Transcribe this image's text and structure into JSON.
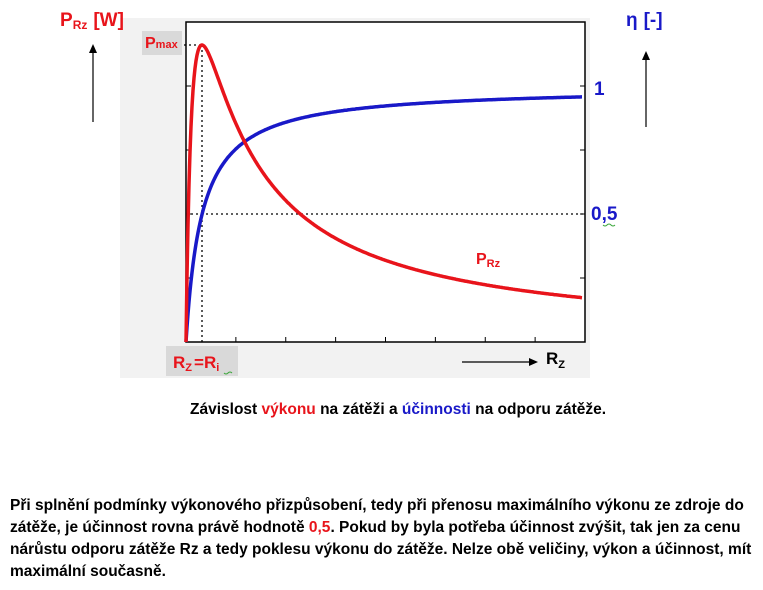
{
  "chart_data": {
    "type": "line",
    "y_left_label": {
      "main": "P",
      "sub": "Rz",
      "unit": "[W]"
    },
    "y_right_label": {
      "main": "η",
      "unit": "[-]"
    },
    "x_label": {
      "main": "R",
      "sub": "Z"
    },
    "pmax_label": {
      "main": "P",
      "sub": "max"
    },
    "x_marker_label": {
      "a": "R",
      "a_sub": "Z",
      "eq": "=",
      "b": "R",
      "b_sub": "i"
    },
    "right_ticks": [
      "1",
      "0,5"
    ],
    "curve_label": {
      "main": "P",
      "sub": "Rz"
    },
    "series": [
      {
        "name": "P",
        "color": "#e8141b"
      },
      {
        "name": "η",
        "color": "#1919c8"
      }
    ],
    "grid": true
  },
  "colors": {
    "red": "#e8141b",
    "blue": "#1919c8"
  },
  "caption": {
    "p1": "Závislost ",
    "w1": "výkonu",
    "p2": " na zátěži a ",
    "w2": "účinnosti",
    "p3": " na odporu zátěže."
  },
  "paragraph": {
    "t1": "Při splnění podmínky výkonového přizpůsobení, tedy při přenosu maximálního výkonu ze zdroje do zátěže, je účinnost rovna právě hodnotě ",
    "val": "0,5",
    "t2": ". Pokud by byla potřeba účinnost zvýšit, tak jen za cenu nárůstu odporu zátěže Rz a tedy poklesu výkonu do zátěže. Nelze obě veličiny, výkon a účinnost, mít maximální současně."
  }
}
